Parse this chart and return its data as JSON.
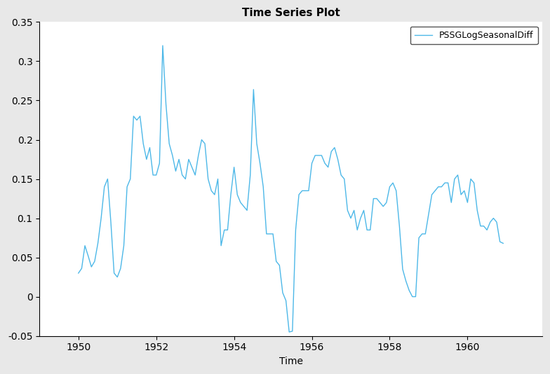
{
  "title": "Time Series Plot",
  "xlabel": "Time",
  "ylabel": "",
  "legend_label": "PSSGLogSeasonalDiff",
  "line_color": "#4db8e8",
  "background_color": "#e8e8e8",
  "plot_bg_color": "#ffffff",
  "xlim": [
    1949.0,
    1961.92
  ],
  "ylim": [
    -0.05,
    0.35
  ],
  "xticks": [
    1950,
    1952,
    1954,
    1956,
    1958,
    1960
  ],
  "yticks": [
    -0.05,
    0.0,
    0.05,
    0.1,
    0.15,
    0.2,
    0.25,
    0.3,
    0.35
  ],
  "start_year": 1950,
  "freq": 12,
  "values": [
    0.03,
    0.036,
    0.065,
    0.052,
    0.038,
    0.045,
    0.068,
    0.1,
    0.14,
    0.15,
    0.095,
    0.03,
    0.025,
    0.036,
    0.065,
    0.14,
    0.15,
    0.23,
    0.225,
    0.23,
    0.195,
    0.175,
    0.19,
    0.155,
    0.155,
    0.17,
    0.32,
    0.245,
    0.195,
    0.18,
    0.16,
    0.175,
    0.155,
    0.15,
    0.175,
    0.165,
    0.155,
    0.18,
    0.2,
    0.195,
    0.15,
    0.135,
    0.13,
    0.15,
    0.065,
    0.085,
    0.085,
    0.13,
    0.165,
    0.13,
    0.12,
    0.115,
    0.11,
    0.155,
    0.264,
    0.195,
    0.17,
    0.14,
    0.08,
    0.08,
    0.08,
    0.045,
    0.04,
    0.005,
    -0.005,
    -0.045,
    -0.044,
    0.085,
    0.13,
    0.135,
    0.135,
    0.135,
    0.17,
    0.18,
    0.18,
    0.18,
    0.17,
    0.165,
    0.185,
    0.19,
    0.175,
    0.155,
    0.15,
    0.11,
    0.1,
    0.11,
    0.085,
    0.1,
    0.11,
    0.085,
    0.085,
    0.125,
    0.125,
    0.12,
    0.115,
    0.12,
    0.14,
    0.145,
    0.135,
    0.09,
    0.035,
    0.02,
    0.008,
    0.0,
    0.0,
    0.075,
    0.08,
    0.08,
    0.105,
    0.13,
    0.135,
    0.14,
    0.14,
    0.145,
    0.145,
    0.12,
    0.15,
    0.155,
    0.13,
    0.135,
    0.12,
    0.15,
    0.145,
    0.11,
    0.09,
    0.09,
    0.085,
    0.095,
    0.1,
    0.095,
    0.07,
    0.068
  ],
  "title_fontsize": 11,
  "label_fontsize": 10,
  "tick_fontsize": 10,
  "legend_fontsize": 9,
  "line_width": 1.0
}
